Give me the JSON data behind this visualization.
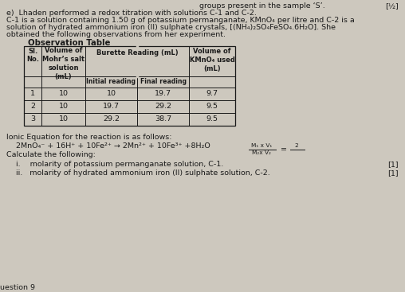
{
  "bg_color": "#cdc8be",
  "text_color": "#1a1a1a",
  "title_line": "groups present in the sample ‘S’.",
  "mark1": "[½]",
  "line_e": "e)  Lhaden performed a redox titration with solutions C-1 and C-2.",
  "line_c1": "C-1 is a solution containing 1.50 g of potassium permanganate, KMnO₄ per litre and C-2 is a",
  "line_c2": "solution of hydrated ammonium iron (II) sulphate crystals, [(NH₄)₂SO₄FeSO₄.6H₂O]. She",
  "line_obs": "obtained the following observations from her experiment.",
  "obs_table_title": "Observation Table",
  "table_data": [
    [
      "1",
      "10",
      "10",
      "19.7",
      "9.7"
    ],
    [
      "2",
      "10",
      "19.7",
      "29.2",
      "9.5"
    ],
    [
      "3",
      "10",
      "29.2",
      "38.7",
      "9.5"
    ]
  ],
  "ionic_eq_label": "Ionic Equation for the reaction is as follows:",
  "ionic_eq": "    2MnO₄⁻ + 16H⁺ + 10Fe²⁺ → 2Mn²⁺ + 10Fe³⁺ +8H₂O",
  "formula_num": "M₁ x V₁",
  "formula_den": "M₂x V₂",
  "formula_rhs_num": "2",
  "formula_rhs_den": "",
  "calc_label": "Calculate the following:",
  "q_i": "i.    molarity of potassium permanganate solution, C-1.",
  "q_ii": "ii.   molarity of hydrated ammonium iron (II) sulphate solution, C-2.",
  "mark_i": "[1]",
  "mark_ii": "[1]",
  "footer": "uestion 9"
}
